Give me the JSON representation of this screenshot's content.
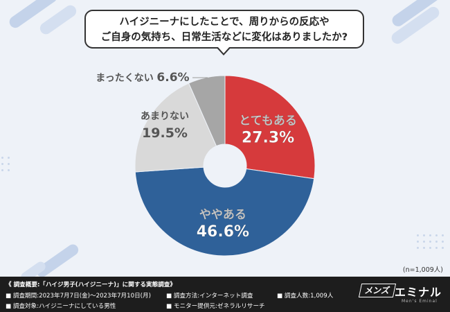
{
  "question": {
    "line1": "ハイジニーナにしたことで、周りからの反応や",
    "line2": "ご自身の気持ち、日常生活などに変化はありましたか?"
  },
  "chart_data": {
    "type": "pie",
    "donut": true,
    "title": "",
    "slices": [
      {
        "label": "とてもある",
        "value": 27.3,
        "display": "27.3%",
        "color": "#d63a3c"
      },
      {
        "label": "ややある",
        "value": 46.6,
        "display": "46.6%",
        "color": "#2f6199"
      },
      {
        "label": "あまりない",
        "value": 19.5,
        "display": "19.5%",
        "color": "#d9d9d9"
      },
      {
        "label": "まったくない",
        "value": 6.6,
        "display": "6.6%",
        "color": "#a6a6a6"
      }
    ]
  },
  "sample_size": "(n=1,009人)",
  "footer": {
    "heading": "《 調査概要:「ハイジ男子(ハイジニーナ)」に関する実態調査》",
    "period": "■ 調査期間:2023年7月7日(金)〜2023年7月10日(月)",
    "method": "■ 調査方法:インターネット調査",
    "count": "■ 調査人数:1,009人",
    "target": "■ 調査対象:ハイジニーナにしている男性",
    "provider": "■ モニター提供元:ゼネラルリサーチ"
  },
  "brand": {
    "badge": "メンズ",
    "name": "エミナル",
    "sub": "Men's Eminal"
  }
}
